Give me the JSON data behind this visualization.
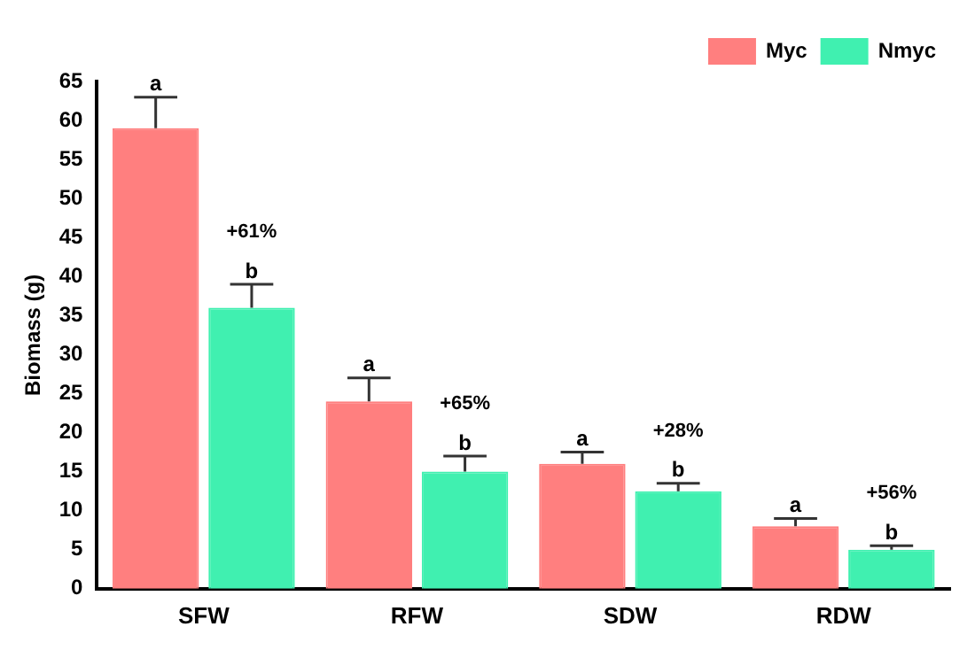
{
  "chart_data": {
    "type": "bar",
    "ylabel": "Biomass (g)",
    "categories": [
      "SFW",
      "RFW",
      "SDW",
      "RDW"
    ],
    "series": [
      {
        "name": "Myc",
        "color": "#ff7f7f",
        "values": [
          59,
          24,
          16,
          8
        ],
        "errors": [
          [
            59,
            63
          ],
          [
            24,
            27
          ],
          [
            16,
            17.5
          ],
          [
            8,
            9
          ]
        ],
        "value_labels": [
          "a",
          "a",
          "a",
          "a"
        ]
      },
      {
        "name": "Nmyc",
        "color": "#40f0b0",
        "values": [
          36,
          15,
          12.5,
          5
        ],
        "errors": [
          [
            36,
            39
          ],
          [
            15,
            17
          ],
          [
            12.5,
            13.5
          ],
          [
            5,
            5.5
          ]
        ],
        "value_labels": [
          "b",
          "b",
          "b",
          "b"
        ]
      }
    ],
    "annotations": [
      "+61%",
      "+65%",
      "+28%",
      "+56%"
    ],
    "ylim": [
      0,
      65
    ],
    "yticks": [
      0,
      5,
      10,
      15,
      20,
      25,
      30,
      35,
      40,
      45,
      50,
      55,
      60,
      65
    ],
    "grid": false,
    "legend": "top right"
  }
}
